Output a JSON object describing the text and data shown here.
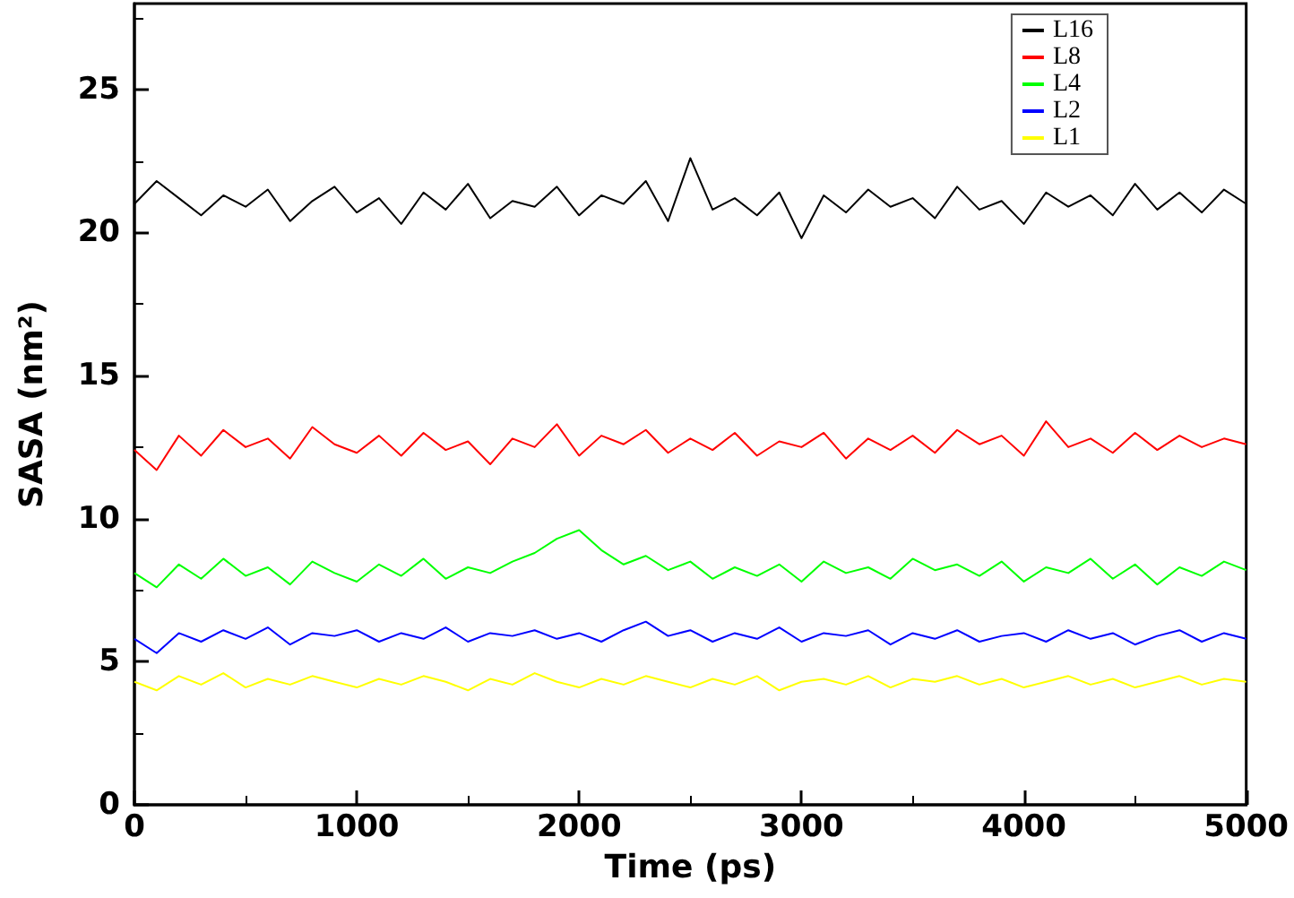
{
  "chart_data": {
    "type": "line",
    "xlabel": "Time (ps)",
    "ylabel": "SASA (nm²)",
    "x": [
      0,
      100,
      200,
      300,
      400,
      500,
      600,
      700,
      800,
      900,
      1000,
      1100,
      1200,
      1300,
      1400,
      1500,
      1600,
      1700,
      1800,
      1900,
      2000,
      2100,
      2200,
      2300,
      2400,
      2500,
      2600,
      2700,
      2800,
      2900,
      3000,
      3100,
      3200,
      3300,
      3400,
      3500,
      3600,
      3700,
      3800,
      3900,
      4000,
      4100,
      4200,
      4300,
      4400,
      4500,
      4600,
      4700,
      4800,
      4900,
      5000
    ],
    "xlim": [
      0,
      5000
    ],
    "xticks": [
      0,
      1000,
      2000,
      3000,
      4000,
      5000
    ],
    "ylim": [
      0,
      28
    ],
    "yticks": [
      0,
      5,
      10,
      15,
      20,
      25
    ],
    "grid": false,
    "legend": "top right",
    "marker": "none",
    "line_style": "solid",
    "series": [
      {
        "name": "L16",
        "color": "#000000",
        "values": [
          21.0,
          21.8,
          21.2,
          20.6,
          21.3,
          20.9,
          21.5,
          20.4,
          21.1,
          21.6,
          20.7,
          21.2,
          20.3,
          21.4,
          20.8,
          21.7,
          20.5,
          21.1,
          20.9,
          21.6,
          20.6,
          21.3,
          21.0,
          21.8,
          20.4,
          22.6,
          20.8,
          21.2,
          20.6,
          21.4,
          19.8,
          21.3,
          20.7,
          21.5,
          20.9,
          21.2,
          20.5,
          21.6,
          20.8,
          21.1,
          20.3,
          21.4,
          20.9,
          21.3,
          20.6,
          21.7,
          20.8,
          21.4,
          20.7,
          21.5,
          21.0
        ]
      },
      {
        "name": "L8",
        "color": "#ff0000",
        "values": [
          12.4,
          11.7,
          12.9,
          12.2,
          13.1,
          12.5,
          12.8,
          12.1,
          13.2,
          12.6,
          12.3,
          12.9,
          12.2,
          13.0,
          12.4,
          12.7,
          11.9,
          12.8,
          12.5,
          13.3,
          12.2,
          12.9,
          12.6,
          13.1,
          12.3,
          12.8,
          12.4,
          13.0,
          12.2,
          12.7,
          12.5,
          13.0,
          12.1,
          12.8,
          12.4,
          12.9,
          12.3,
          13.1,
          12.6,
          12.9,
          12.2,
          13.4,
          12.5,
          12.8,
          12.3,
          13.0,
          12.4,
          12.9,
          12.5,
          12.8,
          12.6
        ]
      },
      {
        "name": "L4",
        "color": "#00ff00",
        "values": [
          8.1,
          7.6,
          8.4,
          7.9,
          8.6,
          8.0,
          8.3,
          7.7,
          8.5,
          8.1,
          7.8,
          8.4,
          8.0,
          8.6,
          7.9,
          8.3,
          8.1,
          8.5,
          8.8,
          9.3,
          9.6,
          8.9,
          8.4,
          8.7,
          8.2,
          8.5,
          7.9,
          8.3,
          8.0,
          8.4,
          7.8,
          8.5,
          8.1,
          8.3,
          7.9,
          8.6,
          8.2,
          8.4,
          8.0,
          8.5,
          7.8,
          8.3,
          8.1,
          8.6,
          7.9,
          8.4,
          7.7,
          8.3,
          8.0,
          8.5,
          8.2
        ]
      },
      {
        "name": "L2",
        "color": "#0000ff",
        "values": [
          5.8,
          5.3,
          6.0,
          5.7,
          6.1,
          5.8,
          6.2,
          5.6,
          6.0,
          5.9,
          6.1,
          5.7,
          6.0,
          5.8,
          6.2,
          5.7,
          6.0,
          5.9,
          6.1,
          5.8,
          6.0,
          5.7,
          6.1,
          6.4,
          5.9,
          6.1,
          5.7,
          6.0,
          5.8,
          6.2,
          5.7,
          6.0,
          5.9,
          6.1,
          5.6,
          6.0,
          5.8,
          6.1,
          5.7,
          5.9,
          6.0,
          5.7,
          6.1,
          5.8,
          6.0,
          5.6,
          5.9,
          6.1,
          5.7,
          6.0,
          5.8
        ]
      },
      {
        "name": "L1",
        "color": "#ffff00",
        "values": [
          4.3,
          4.0,
          4.5,
          4.2,
          4.6,
          4.1,
          4.4,
          4.2,
          4.5,
          4.3,
          4.1,
          4.4,
          4.2,
          4.5,
          4.3,
          4.0,
          4.4,
          4.2,
          4.6,
          4.3,
          4.1,
          4.4,
          4.2,
          4.5,
          4.3,
          4.1,
          4.4,
          4.2,
          4.5,
          4.0,
          4.3,
          4.4,
          4.2,
          4.5,
          4.1,
          4.4,
          4.3,
          4.5,
          4.2,
          4.4,
          4.1,
          4.3,
          4.5,
          4.2,
          4.4,
          4.1,
          4.3,
          4.5,
          4.2,
          4.4,
          4.3
        ]
      }
    ]
  }
}
